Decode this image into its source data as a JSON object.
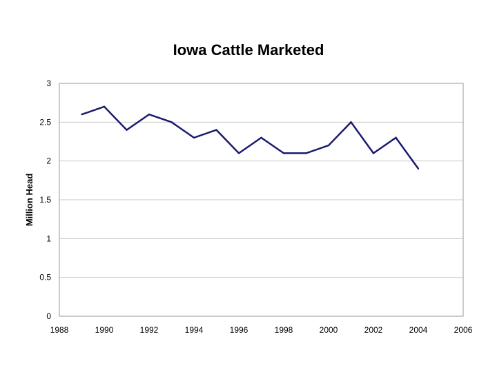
{
  "chart_data": {
    "type": "line",
    "title": "Iowa Cattle Marketed",
    "xlabel": "",
    "ylabel": "Million Head",
    "xlim": [
      1988,
      2006
    ],
    "ylim": [
      0,
      3
    ],
    "xticks": [
      1988,
      1990,
      1992,
      1994,
      1996,
      1998,
      2000,
      2002,
      2004,
      2006
    ],
    "yticks": [
      0,
      0.5,
      1,
      1.5,
      2,
      2.5,
      3
    ],
    "grid": true,
    "legend": "none",
    "series": [
      {
        "x": [
          1989,
          1990,
          1991,
          1992,
          1993,
          1994,
          1995,
          1996,
          1997,
          1998,
          1999,
          2000,
          2001,
          2002,
          2003,
          2004
        ],
        "y": [
          2.6,
          2.7,
          2.4,
          2.6,
          2.5,
          2.3,
          2.4,
          2.1,
          2.3,
          2.1,
          2.1,
          2.2,
          2.5,
          2.1,
          2.3,
          1.9
        ],
        "color": "#1a1a6e"
      }
    ],
    "colors": {
      "line": "#1a1a6e",
      "grid": "#c8c8c8",
      "frame": "#999999"
    }
  }
}
